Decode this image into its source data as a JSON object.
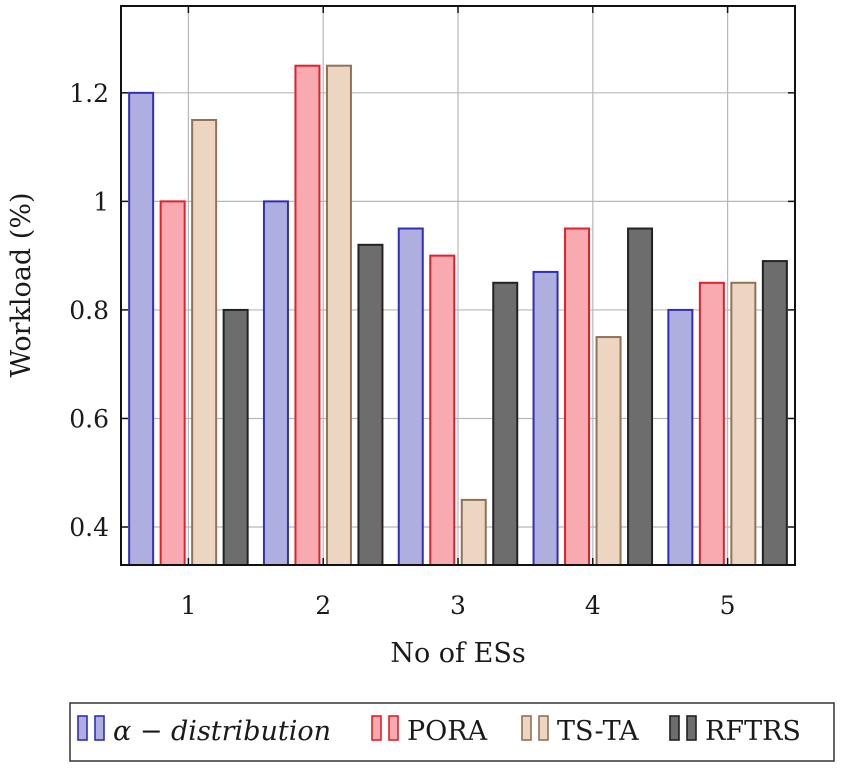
{
  "chart_data": {
    "type": "bar",
    "title": "",
    "xlabel": "No of ESs",
    "ylabel": "Workload (%)",
    "categories": [
      "1",
      "2",
      "3",
      "4",
      "5"
    ],
    "ylim": [
      0.33,
      1.36
    ],
    "yticks": [
      {
        "value": 0.4,
        "label": "0.4"
      },
      {
        "value": 0.6,
        "label": "0.6"
      },
      {
        "value": 0.8,
        "label": "0.8"
      },
      {
        "value": 1.0,
        "label": "1"
      },
      {
        "value": 1.2,
        "label": "1.2"
      }
    ],
    "grid": true,
    "legend_position": "bottom",
    "series": [
      {
        "name": "α − distribution",
        "values": [
          1.2,
          1.0,
          0.95,
          0.87,
          0.8
        ],
        "fill": "#aeaedf",
        "stroke": "#2f2fb8"
      },
      {
        "name": "PORA",
        "values": [
          1.0,
          1.25,
          0.9,
          0.95,
          0.85
        ],
        "fill": "#f9aab0",
        "stroke": "#e0202a"
      },
      {
        "name": "TS-TA",
        "values": [
          1.15,
          1.25,
          0.45,
          0.75,
          0.85
        ],
        "fill": "#ecd6c2",
        "stroke": "#8f7257"
      },
      {
        "name": "RFTRS",
        "values": [
          0.8,
          0.92,
          0.85,
          0.95,
          0.89
        ],
        "fill": "#6d6d6d",
        "stroke": "#222222"
      }
    ]
  }
}
